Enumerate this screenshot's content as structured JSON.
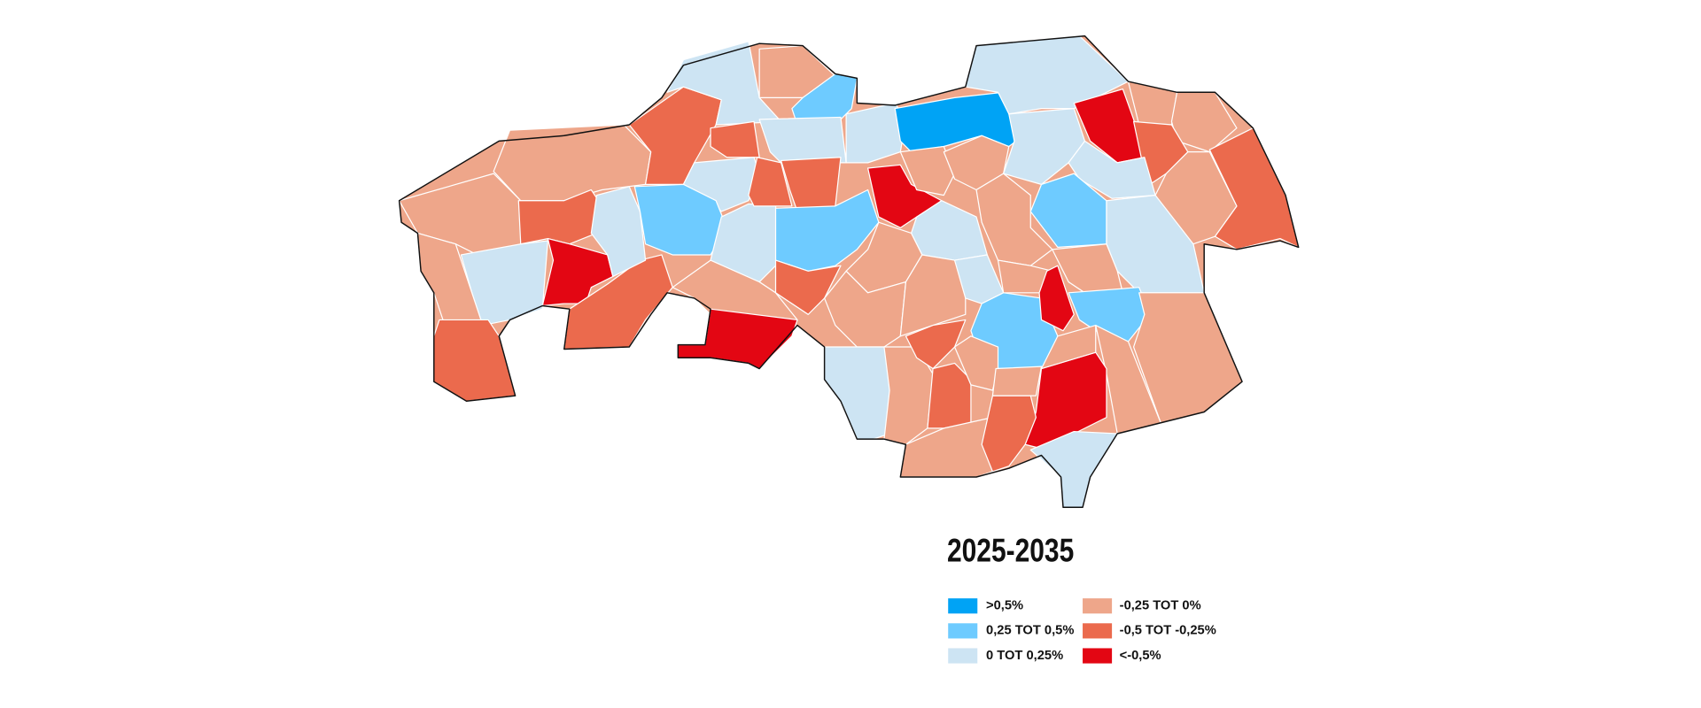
{
  "title": "2025-2035",
  "legend": [
    {
      "label": ">0,5%",
      "color": "#00a3f5"
    },
    {
      "label": "0,25 TOT 0,5%",
      "color": "#6ecbff"
    },
    {
      "label": "0 TOT 0,25%",
      "color": "#cde4f3"
    },
    {
      "label": "-0,25 TOT 0%",
      "color": "#eea68a"
    },
    {
      "label": "-0,5 TOT -0,25%",
      "color": "#eb6a4d"
    },
    {
      "label": "<-0,5%",
      "color": "#e30613"
    }
  ]
}
